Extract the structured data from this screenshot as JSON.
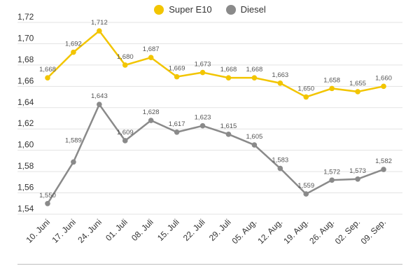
{
  "colors": {
    "super": "#f2c500",
    "diesel": "#8a8a8a",
    "grid": "#e3e3e3",
    "label": "#555555"
  },
  "legend": [
    {
      "name": "Super E10",
      "color": "#f2c500"
    },
    {
      "name": "Diesel",
      "color": "#8a8a8a"
    }
  ],
  "chart_data": {
    "type": "line",
    "title": "",
    "xlabel": "",
    "ylabel": "",
    "ylim": [
      1.54,
      1.72
    ],
    "yticks": [
      "1,54",
      "1,56",
      "1,58",
      "1,60",
      "1,62",
      "1,64",
      "1,66",
      "1,68",
      "1,70",
      "1,72"
    ],
    "grid": true,
    "legend_position": "top-center",
    "categories": [
      "10. Juni",
      "17. Juni",
      "24. Juni",
      "01. Juli",
      "08. Juli",
      "15. Juli",
      "22. Juli",
      "29. Juli",
      "05. Aug.",
      "12. Aug.",
      "19. Aug.",
      "26. Aug.",
      "02. Sep.",
      "09. Sep."
    ],
    "series": [
      {
        "name": "Super E10",
        "values": [
          1.668,
          1.692,
          1.712,
          1.68,
          1.687,
          1.669,
          1.673,
          1.668,
          1.668,
          1.663,
          1.65,
          1.658,
          1.655,
          1.66
        ],
        "labels": [
          "1,668",
          "1,692",
          "1,712",
          "1,680",
          "1,687",
          "1,669",
          "1,673",
          "1,668",
          "1,668",
          "1,663",
          "1,650",
          "1,658",
          "1,655",
          "1,660"
        ]
      },
      {
        "name": "Diesel",
        "values": [
          1.55,
          1.589,
          1.643,
          1.609,
          1.628,
          1.617,
          1.623,
          1.615,
          1.605,
          1.583,
          1.559,
          1.572,
          1.573,
          1.582
        ],
        "labels": [
          "1,550",
          "1,589",
          "1,643",
          "1,609",
          "1,628",
          "1,617",
          "1,623",
          "1,615",
          "1,605",
          "1,583",
          "1,559",
          "1,572",
          "1,573",
          "1,582"
        ]
      }
    ]
  }
}
